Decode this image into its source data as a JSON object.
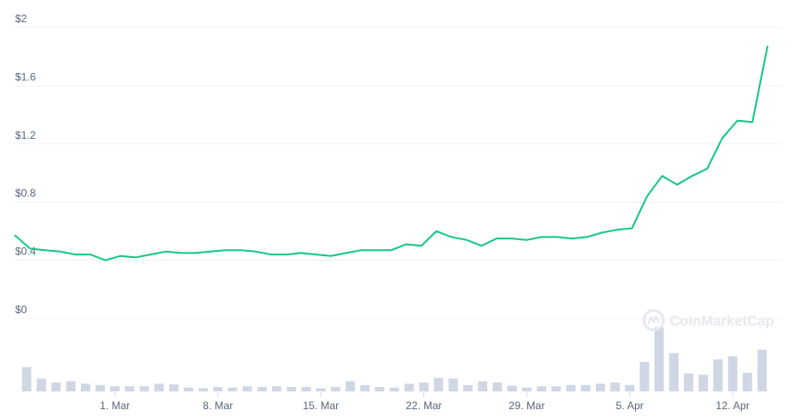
{
  "watermark": {
    "text": "CoinMarketCap"
  },
  "chart_data": {
    "type": "line",
    "ylim": [
      0,
      2
    ],
    "y_tick_labels": [
      "$0",
      "$0.4",
      "$0.8",
      "$1.2",
      "$1.6",
      "$2"
    ],
    "y_tick_values": [
      0,
      0.4,
      0.8,
      1.2,
      1.6,
      2
    ],
    "x_tick_labels": [
      "1. Mar",
      "8. Mar",
      "15. Mar",
      "22. Mar",
      "29. Mar",
      "5. Apr",
      "12. Apr"
    ],
    "x_tick_indices": [
      6,
      13,
      20,
      27,
      34,
      41,
      48
    ],
    "grid": true,
    "series": [
      {
        "values": [
          0.57,
          0.48,
          0.47,
          0.46,
          0.44,
          0.44,
          0.4,
          0.43,
          0.42,
          0.44,
          0.46,
          0.45,
          0.45,
          0.46,
          0.47,
          0.47,
          0.46,
          0.44,
          0.44,
          0.45,
          0.44,
          0.43,
          0.45,
          0.47,
          0.47,
          0.47,
          0.51,
          0.5,
          0.6,
          0.56,
          0.54,
          0.5,
          0.55,
          0.55,
          0.54,
          0.56,
          0.56,
          0.55,
          0.56,
          0.59,
          0.61,
          0.62,
          0.84,
          0.98,
          0.92,
          0.98,
          1.03,
          1.24,
          1.36,
          1.35,
          1.87
        ]
      }
    ],
    "volume": [
      0.38,
      0.2,
      0.14,
      0.16,
      0.12,
      0.1,
      0.08,
      0.08,
      0.08,
      0.12,
      0.11,
      0.06,
      0.05,
      0.07,
      0.06,
      0.08,
      0.07,
      0.08,
      0.07,
      0.07,
      0.05,
      0.07,
      0.16,
      0.1,
      0.07,
      0.06,
      0.12,
      0.14,
      0.21,
      0.2,
      0.1,
      0.16,
      0.14,
      0.09,
      0.06,
      0.08,
      0.08,
      0.1,
      0.1,
      0.12,
      0.14,
      0.1,
      0.46,
      1.0,
      0.6,
      0.28,
      0.26,
      0.5,
      0.55,
      0.29,
      0.65
    ]
  }
}
